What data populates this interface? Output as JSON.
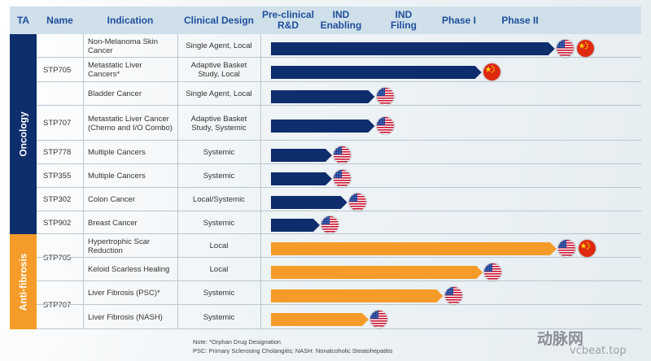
{
  "headers": {
    "ta": "TA",
    "name": "Name",
    "indication": "Indication",
    "design": "Clinical Design",
    "preclinical": "Pre-clinical R&D",
    "ind_enabling": "IND Enabling",
    "ind_filing": "IND Filing",
    "phase1": "Phase I",
    "phase2": "Phase II"
  },
  "therapeutic_areas": [
    {
      "label": "Oncology",
      "color": "#0e2d6c"
    },
    {
      "label": "Anti-fibrosis",
      "color": "#f59b2a"
    }
  ],
  "name_groups": [
    {
      "name": "STP705"
    },
    {
      "name": "STP707"
    },
    {
      "name": "STP778"
    },
    {
      "name": "STP355"
    },
    {
      "name": "STP302"
    },
    {
      "name": "STP902"
    },
    {
      "name": "STP705"
    },
    {
      "name": "STP707"
    }
  ],
  "chart_data": {
    "type": "bar",
    "orientation": "horizontal",
    "stages": [
      "Pre-clinical R&D",
      "IND Enabling",
      "IND Filing",
      "Phase I",
      "Phase II"
    ],
    "rows": [
      {
        "ta": "Oncology",
        "name": "STP705",
        "indication": "Non-Melanoma Skin Cancer",
        "design": "Single Agent, Local",
        "progress": 4.65,
        "flags": [
          "us",
          "cn"
        ]
      },
      {
        "ta": "Oncology",
        "name": "STP705",
        "indication": "Metastatic Liver Cancers*",
        "design": "Adaptive Basket Study, Local",
        "progress": 3.45,
        "flags": [
          "cn"
        ]
      },
      {
        "ta": "Oncology",
        "name": "STP705",
        "indication": "Bladder Cancer",
        "design": "Single Agent, Local",
        "progress": 1.7,
        "flags": [
          "us"
        ]
      },
      {
        "ta": "Oncology",
        "name": "STP707",
        "indication": "Metastatic Liver Cancer (Chemo and I/O Combo)",
        "design": "Adaptive Basket Study, Systemic",
        "progress": 1.7,
        "flags": [
          "us"
        ]
      },
      {
        "ta": "Oncology",
        "name": "STP778",
        "indication": "Multiple Cancers",
        "design": "Systemic",
        "progress": 1.0,
        "flags": [
          "us"
        ]
      },
      {
        "ta": "Oncology",
        "name": "STP355",
        "indication": "Multiple Cancers",
        "design": "Systemic",
        "progress": 1.0,
        "flags": [
          "us"
        ]
      },
      {
        "ta": "Oncology",
        "name": "STP302",
        "indication": "Colon Cancer",
        "design": "Local/Systemic",
        "progress": 1.25,
        "flags": [
          "us"
        ]
      },
      {
        "ta": "Oncology",
        "name": "STP902",
        "indication": "Breast Cancer",
        "design": "Systemic",
        "progress": 0.8,
        "flags": [
          "us"
        ]
      },
      {
        "ta": "Anti-fibrosis",
        "name": "STP705",
        "indication": "Hypertrophic Scar Reduction",
        "design": "Local",
        "progress": 4.68,
        "flags": [
          "us",
          "cn"
        ]
      },
      {
        "ta": "Anti-fibrosis",
        "name": "STP705",
        "indication": "Keloid Scarless Healing",
        "design": "Local",
        "progress": 3.47,
        "flags": [
          "us"
        ]
      },
      {
        "ta": "Anti-fibrosis",
        "name": "STP707",
        "indication": "Liver Fibrosis (PSC)*",
        "design": "Systemic",
        "progress": 2.82,
        "flags": [
          "us"
        ]
      },
      {
        "ta": "Anti-fibrosis",
        "name": "STP707",
        "indication": "Liver Fibrosis (NASH)",
        "design": "Systemic",
        "progress": 1.6,
        "flags": [
          "us"
        ]
      }
    ]
  },
  "notes": {
    "line1": "Note: *Orphan Drug Designation",
    "line2": "PSC: Primary Sclerosing Cholangitis;  NASH: Nonalcoholic Steatohepatitis"
  },
  "watermark": {
    "cn_text": "动脉网",
    "url": "vcbeat.top"
  }
}
